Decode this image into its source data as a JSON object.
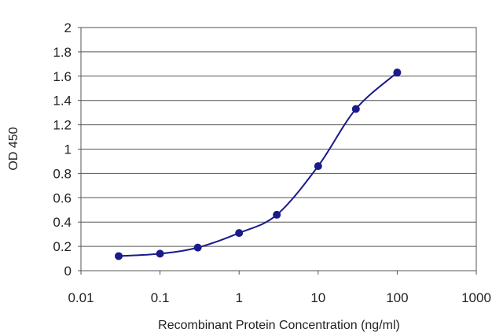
{
  "chart_data": {
    "type": "line",
    "title": "",
    "xlabel": "Recombinant Protein Concentration (ng/ml)",
    "ylabel": "OD 450",
    "xscale": "log",
    "xlim": [
      0.01,
      1000
    ],
    "ylim": [
      0,
      2
    ],
    "x_ticks": [
      "0.01",
      "0.1",
      "1",
      "10",
      "100",
      "1000"
    ],
    "y_ticks": [
      "0",
      "0.2",
      "0.4",
      "0.6",
      "0.8",
      "1",
      "1.2",
      "1.4",
      "1.6",
      "1.8",
      "2"
    ],
    "grid": "horizontal",
    "legend": "none",
    "series": [
      {
        "x": [
          0.03,
          0.1,
          0.3,
          1,
          3,
          10,
          30,
          100
        ],
        "y": [
          0.12,
          0.14,
          0.19,
          0.31,
          0.46,
          0.86,
          1.33,
          1.63
        ],
        "color": "#1a1a8c"
      }
    ]
  }
}
